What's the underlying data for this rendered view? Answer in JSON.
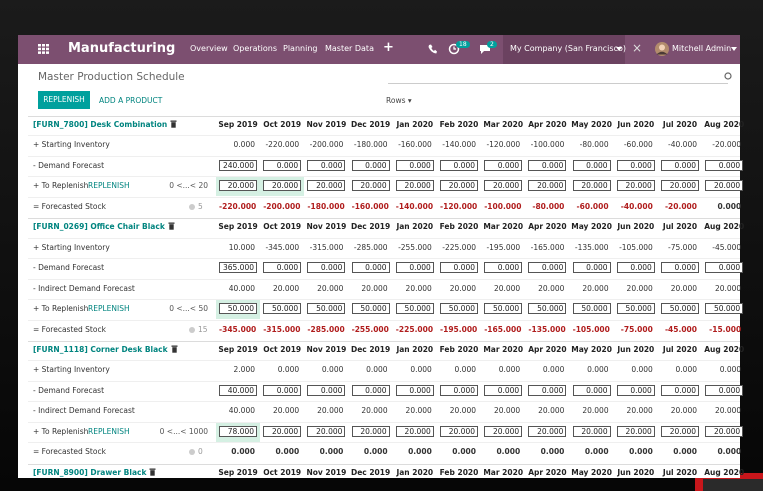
{
  "navbar": {
    "app": "Manufacturing",
    "menu": [
      "Overview",
      "Operations",
      "Planning",
      "Master Data"
    ],
    "activity_count": "18",
    "message_count": "2",
    "company": "My Company (San Francisco)",
    "user": "Mitchell Admin"
  },
  "breadcrumb": "Master Production Schedule",
  "buttons": {
    "replenish": "REPLENISH",
    "add_product": "ADD A PRODUCT",
    "rows": "Rows"
  },
  "months": [
    "Sep 2019",
    "Oct 2019",
    "Nov 2019",
    "Dec 2019",
    "Jan 2020",
    "Feb 2020",
    "Mar 2020",
    "Apr 2020",
    "May 2020",
    "Jun 2020",
    "Jul 2020",
    "Aug 2020"
  ],
  "products": [
    {
      "name": "[FURN_7800] Desk Combination",
      "rows": [
        {
          "label": "+ Starting Inventory",
          "values": [
            "0.000",
            "-220.000",
            "-200.000",
            "-180.000",
            "-160.000",
            "-140.000",
            "-120.000",
            "-100.000",
            "-80.000",
            "-60.000",
            "-40.000",
            "-20.000"
          ]
        },
        {
          "label": "- Demand Forecast",
          "editable": true,
          "values": [
            "240.000",
            "0.000",
            "0.000",
            "0.000",
            "0.000",
            "0.000",
            "0.000",
            "0.000",
            "0.000",
            "0.000",
            "0.000",
            "0.000"
          ]
        },
        {
          "label": "+ To Replenish",
          "action": "REPLENISH",
          "range": "0 <...< 20",
          "editable": true,
          "highlighted_columns": [
            0,
            1
          ],
          "values": [
            "20.000",
            "20.000",
            "20.000",
            "20.000",
            "20.000",
            "20.000",
            "20.000",
            "20.000",
            "20.000",
            "20.000",
            "20.000",
            "20.000"
          ]
        },
        {
          "label": "= Forecasted Stock",
          "safety": "5",
          "bold": true,
          "values": [
            "-220.000",
            "-200.000",
            "-180.000",
            "-160.000",
            "-140.000",
            "-120.000",
            "-100.000",
            "-80.000",
            "-60.000",
            "-40.000",
            "-20.000",
            "0.000"
          ]
        }
      ]
    },
    {
      "name": "[FURN_0269] Office Chair Black",
      "rows": [
        {
          "label": "+ Starting Inventory",
          "values": [
            "10.000",
            "-345.000",
            "-315.000",
            "-285.000",
            "-255.000",
            "-225.000",
            "-195.000",
            "-165.000",
            "-135.000",
            "-105.000",
            "-75.000",
            "-45.000"
          ]
        },
        {
          "label": "- Demand Forecast",
          "editable": true,
          "values": [
            "365.000",
            "0.000",
            "0.000",
            "0.000",
            "0.000",
            "0.000",
            "0.000",
            "0.000",
            "0.000",
            "0.000",
            "0.000",
            "0.000"
          ]
        },
        {
          "label": "- Indirect Demand Forecast",
          "values": [
            "40.000",
            "20.000",
            "20.000",
            "20.000",
            "20.000",
            "20.000",
            "20.000",
            "20.000",
            "20.000",
            "20.000",
            "20.000",
            "20.000"
          ]
        },
        {
          "label": "+ To Replenish",
          "action": "REPLENISH",
          "range": "0 <...< 50",
          "editable": true,
          "highlighted_columns": [
            0
          ],
          "values": [
            "50.000",
            "50.000",
            "50.000",
            "50.000",
            "50.000",
            "50.000",
            "50.000",
            "50.000",
            "50.000",
            "50.000",
            "50.000",
            "50.000"
          ]
        },
        {
          "label": "= Forecasted Stock",
          "safety": "15",
          "bold": true,
          "values": [
            "-345.000",
            "-315.000",
            "-285.000",
            "-255.000",
            "-225.000",
            "-195.000",
            "-165.000",
            "-135.000",
            "-105.000",
            "-75.000",
            "-45.000",
            "-15.000"
          ]
        }
      ]
    },
    {
      "name": "[FURN_1118] Corner Desk Black",
      "rows": [
        {
          "label": "+ Starting Inventory",
          "values": [
            "2.000",
            "0.000",
            "0.000",
            "0.000",
            "0.000",
            "0.000",
            "0.000",
            "0.000",
            "0.000",
            "0.000",
            "0.000",
            "0.000"
          ]
        },
        {
          "label": "- Demand Forecast",
          "editable": true,
          "values": [
            "40.000",
            "0.000",
            "0.000",
            "0.000",
            "0.000",
            "0.000",
            "0.000",
            "0.000",
            "0.000",
            "0.000",
            "0.000",
            "0.000"
          ]
        },
        {
          "label": "- Indirect Demand Forecast",
          "values": [
            "40.000",
            "20.000",
            "20.000",
            "20.000",
            "20.000",
            "20.000",
            "20.000",
            "20.000",
            "20.000",
            "20.000",
            "20.000",
            "20.000"
          ]
        },
        {
          "label": "+ To Replenish",
          "action": "REPLENISH",
          "range": "0 <...< 1000",
          "editable": true,
          "highlighted_columns": [
            0
          ],
          "values": [
            "78.000",
            "20.000",
            "20.000",
            "20.000",
            "20.000",
            "20.000",
            "20.000",
            "20.000",
            "20.000",
            "20.000",
            "20.000",
            "20.000"
          ]
        },
        {
          "label": "= Forecasted Stock",
          "safety": "0",
          "bold": true,
          "values": [
            "0.000",
            "0.000",
            "0.000",
            "0.000",
            "0.000",
            "0.000",
            "0.000",
            "0.000",
            "0.000",
            "0.000",
            "0.000",
            "0.000"
          ]
        }
      ]
    },
    {
      "name": "[FURN_8900] Drawer Black",
      "rows": []
    }
  ]
}
